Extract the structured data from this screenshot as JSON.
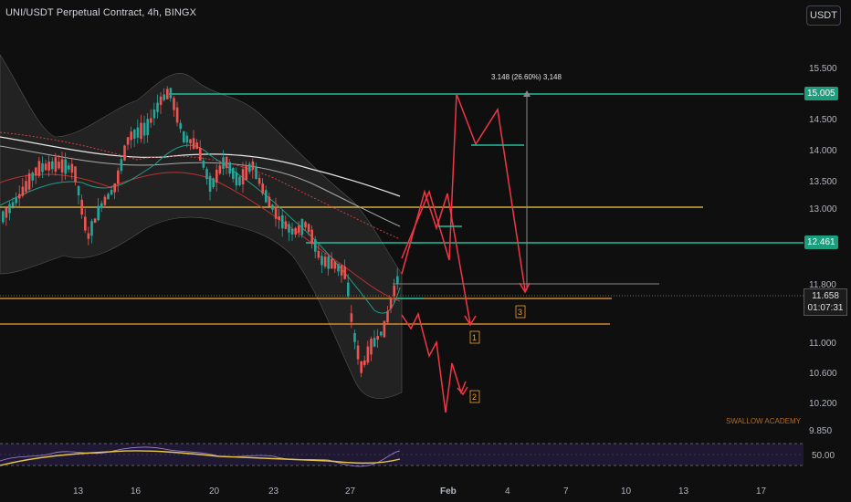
{
  "header": {
    "title": "UNI/USDT Perpetual Contract, 4h, BINGX",
    "currency": "USDT"
  },
  "price_axis": {
    "ticks": [
      "15.500",
      "14.500",
      "14.000",
      "13.500",
      "13.000",
      "11.800",
      "11.000",
      "10.600",
      "10.200",
      "9.850"
    ],
    "levels": {
      "resistance_high": "15.005",
      "resistance_mid": "12.461",
      "current_price": "11.658",
      "countdown": "01:07:31"
    }
  },
  "time_axis": {
    "ticks": [
      "13",
      "16",
      "20",
      "23",
      "27",
      "Feb",
      "4",
      "7",
      "10",
      "13",
      "17"
    ]
  },
  "annotations": {
    "measure": "3.148 (26.60%) 3,148",
    "scenario_1": "1",
    "scenario_2": "2",
    "scenario_3": "3",
    "watermark": "SWALLOW ACADEMY"
  },
  "rsi": {
    "level_label": "50.00"
  },
  "colors": {
    "background": "#0f0f0f",
    "up": "#26a69a",
    "down": "#ef5350",
    "teal_line": "#1fbf9e",
    "yellow_line": "#f2c94c",
    "orange_line": "#f0a030",
    "red_path": "#f23645",
    "rsi_yellow": "#e8c547",
    "rsi_band": "#2a1e4a"
  }
}
